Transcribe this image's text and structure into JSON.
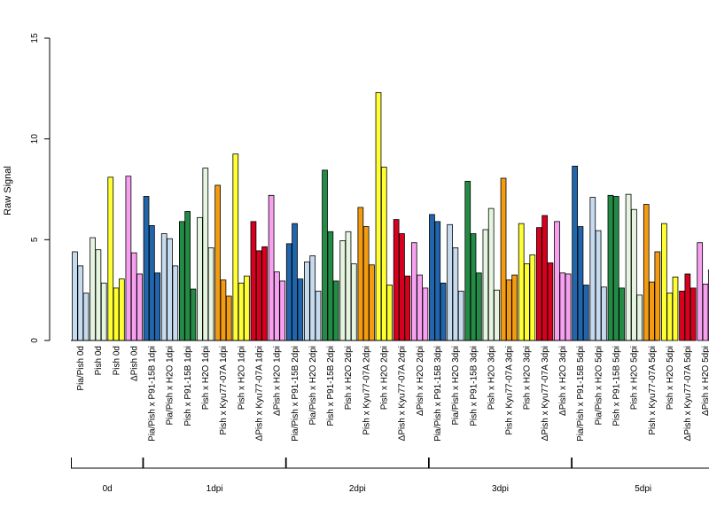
{
  "chart_data": {
    "type": "bar",
    "title": "",
    "xlabel": "",
    "ylabel": "Raw Signal",
    "ylim": [
      0,
      15
    ],
    "yticks": [
      "0",
      "5",
      "10",
      "15"
    ],
    "grid": false,
    "bars_per_group": 3,
    "colors": {
      "Pia/Pish": "#c6dbef",
      "Pish": "#e5f5e0",
      "Pish yellow": "#ffff33",
      "ΔPish": "#f7a0f0",
      "P91-15B blue": "#2166ac",
      "P91-15B green": "#238b45",
      "Kyu77-07A": "#f39c12",
      "ΔPish x Kyu77-07A": "#d7001f"
    },
    "categories": [
      "Pia/Pish 0d",
      "Pish 0d",
      "Pish 0d",
      "ΔPish 0d",
      "Pia/Pish x P91-15B 1dpi",
      "Pia/Pish x H2O 1dpi",
      "Pish x P91-15B 1dpi",
      "Pish x H2O 1dpi",
      "Pish x Kyu77-07A 1dpi",
      "Pish x H2O 1dpi",
      "ΔPish x Kyu77-07A 1dpi",
      "ΔPish x H2O 1dpi",
      "Pia/Pish x P91-15B 2dpi",
      "Pia/Pish x H2O 2dpi",
      "Pish x P91-15B 2dpi",
      "Pish x H2O 2dpi",
      "Pish x Kyu77-07A 2dpi",
      "Pish x H2O 2dpi",
      "ΔPish x Kyu77-07A 2dpi",
      "ΔPish x H2O 2dpi",
      "Pia/Pish x P91-15B 3dpi",
      "Pia/Pish x H2O 3dpi",
      "Pish x P91-15B 3dpi",
      "Pish x H2O 3dpi",
      "Pish x Kyu77-07A 3dpi",
      "Pish x H2O 3dpi",
      "ΔPish x Kyu77-07A 3dpi",
      "ΔPish x H2O 3dpi",
      "Pia/Pish x P91-15B 5dpi",
      "Pia/Pish x H2O 5dpi",
      "Pish x P91-15B 5dpi",
      "Pish x H2O 5dpi",
      "Pish x Kyu77-07A 5dpi",
      "Pish x H2O 5dpi",
      "ΔPish x Kyu77-07A 5dpi",
      "ΔPish x H2O 5dpi"
    ],
    "values": [
      [
        4.4,
        3.7,
        2.35
      ],
      [
        5.1,
        4.5,
        2.85
      ],
      [
        8.1,
        2.6,
        3.05
      ],
      [
        8.15,
        4.35,
        3.3
      ],
      [
        7.15,
        5.7,
        3.35
      ],
      [
        5.3,
        5.05,
        3.7
      ],
      [
        5.9,
        6.4,
        2.55
      ],
      [
        6.1,
        8.55,
        4.6
      ],
      [
        7.7,
        3.0,
        2.2
      ],
      [
        9.25,
        2.85,
        3.2
      ],
      [
        5.9,
        4.45,
        4.65
      ],
      [
        7.2,
        3.4,
        2.95
      ],
      [
        4.8,
        5.8,
        3.05
      ],
      [
        3.9,
        4.2,
        2.45
      ],
      [
        8.45,
        5.4,
        2.95
      ],
      [
        4.95,
        5.4,
        3.8
      ],
      [
        6.6,
        5.65,
        3.75
      ],
      [
        12.3,
        8.6,
        2.75
      ],
      [
        6.0,
        5.3,
        3.2
      ],
      [
        4.85,
        3.25,
        2.6
      ],
      [
        6.25,
        5.9,
        2.85
      ],
      [
        5.75,
        4.6,
        2.45
      ],
      [
        7.9,
        5.3,
        3.35
      ],
      [
        5.5,
        6.55,
        2.5
      ],
      [
        8.05,
        3.0,
        3.25
      ],
      [
        5.8,
        3.8,
        4.25
      ],
      [
        5.6,
        6.2,
        3.85
      ],
      [
        5.9,
        3.35,
        3.3
      ],
      [
        8.65,
        5.65,
        2.75
      ],
      [
        7.1,
        5.45,
        2.65
      ],
      [
        7.2,
        7.15,
        2.6
      ],
      [
        7.25,
        6.5,
        2.25
      ],
      [
        6.75,
        2.9,
        4.4
      ],
      [
        5.8,
        2.35,
        3.15
      ],
      [
        2.45,
        3.3,
        2.6
      ],
      [
        4.85,
        2.8,
        3.5
      ]
    ],
    "bar_colors": [
      "#c6dbef",
      "#e5f5e0",
      "#ffff33",
      "#f7a0f0",
      "#2166ac",
      "#c6dbef",
      "#238b45",
      "#e5f5e0",
      "#f39c12",
      "#ffff33",
      "#d7001f",
      "#f7a0f0",
      "#2166ac",
      "#c6dbef",
      "#238b45",
      "#e5f5e0",
      "#f39c12",
      "#ffff33",
      "#d7001f",
      "#f7a0f0",
      "#2166ac",
      "#c6dbef",
      "#238b45",
      "#e5f5e0",
      "#f39c12",
      "#ffff33",
      "#d7001f",
      "#f7a0f0",
      "#2166ac",
      "#c6dbef",
      "#238b45",
      "#e5f5e0",
      "#f39c12",
      "#ffff33",
      "#d7001f",
      "#f7a0f0"
    ],
    "groups": [
      {
        "label": "0d",
        "count": 4
      },
      {
        "label": "1dpi",
        "count": 8
      },
      {
        "label": "2dpi",
        "count": 8
      },
      {
        "label": "3dpi",
        "count": 8
      },
      {
        "label": "5dpi",
        "count": 8
      }
    ]
  }
}
